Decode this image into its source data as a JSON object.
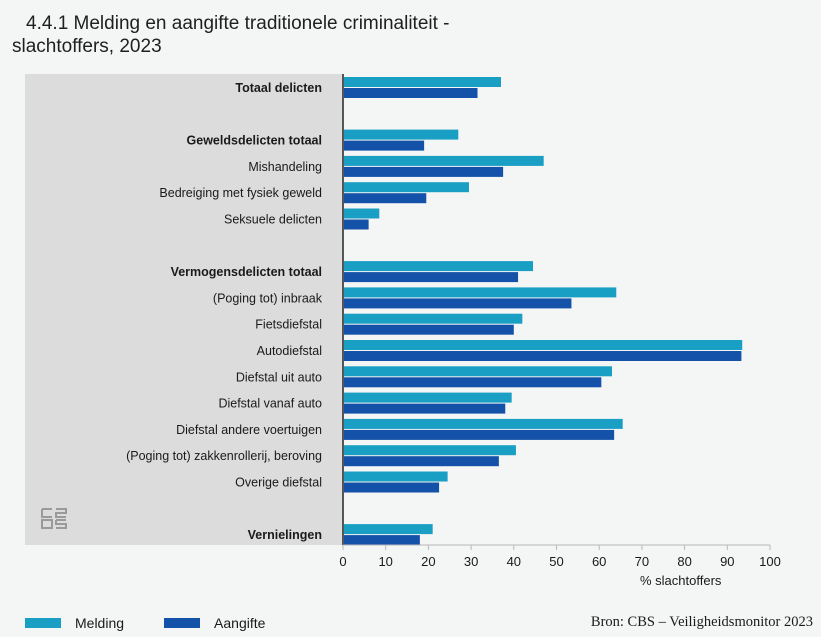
{
  "title_line1": "4.4.1 Melding en aangifte traditionele criminaliteit -",
  "title_line2": "slachtoffers, 2023",
  "source": "Bron: CBS – Veiligheidsmonitor 2023",
  "logo": "cbs-logo-icon",
  "chart_data": {
    "type": "bar",
    "orientation": "horizontal",
    "xlabel": "% slachtoffers",
    "xlim": [
      0,
      100
    ],
    "xticks": [
      "0",
      "10",
      "20",
      "30",
      "40",
      "50",
      "60",
      "70",
      "80",
      "90",
      "100"
    ],
    "legend_position": "bottom-left",
    "categories": [
      {
        "label": "Totaal delicten",
        "bold": true
      },
      {
        "label": "",
        "spacer": true
      },
      {
        "label": "Geweldsdelicten totaal",
        "bold": true
      },
      {
        "label": "Mishandeling",
        "bold": false
      },
      {
        "label": "Bedreiging met fysiek geweld",
        "bold": false
      },
      {
        "label": "Seksuele delicten",
        "bold": false
      },
      {
        "label": "",
        "spacer": true
      },
      {
        "label": "Vermogensdelicten totaal",
        "bold": true
      },
      {
        "label": "(Poging tot) inbraak",
        "bold": false
      },
      {
        "label": "Fietsdiefstal",
        "bold": false
      },
      {
        "label": "Autodiefstal",
        "bold": false
      },
      {
        "label": "Diefstal uit auto",
        "bold": false
      },
      {
        "label": "Diefstal vanaf auto",
        "bold": false
      },
      {
        "label": "Diefstal andere voertuigen",
        "bold": false
      },
      {
        "label": "(Poging tot) zakkenrollerij, beroving",
        "bold": false
      },
      {
        "label": "Overige diefstal",
        "bold": false
      },
      {
        "label": "",
        "spacer": true
      },
      {
        "label": "Vernielingen",
        "bold": true
      }
    ],
    "series": [
      {
        "name": "Melding",
        "color": "#199fc4",
        "values": [
          37,
          null,
          27,
          47,
          29.5,
          8.5,
          null,
          44.5,
          64,
          42,
          93.5,
          63,
          39.5,
          65.5,
          40.5,
          24.5,
          null,
          21
        ]
      },
      {
        "name": "Aangifte",
        "color": "#1352a8",
        "values": [
          31.5,
          null,
          19,
          37.5,
          19.5,
          6,
          null,
          41,
          53.5,
          40,
          93.3,
          60.5,
          38,
          63.5,
          36.5,
          22.5,
          null,
          18
        ]
      }
    ]
  }
}
